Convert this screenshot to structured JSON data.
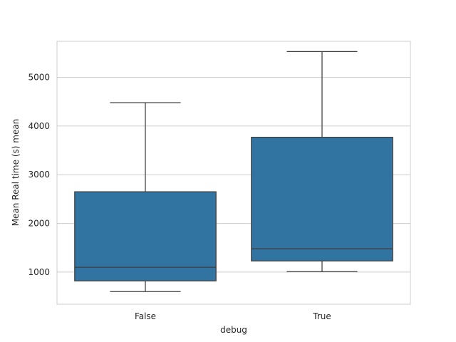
{
  "chart_data": {
    "type": "box",
    "xlabel": "debug",
    "ylabel": "Mean Real time (s) mean",
    "categories": [
      "False",
      "True"
    ],
    "boxes": [
      {
        "category": "False",
        "whisker_low": 600,
        "q1": 820,
        "median": 1100,
        "q3": 2650,
        "whisker_high": 4480
      },
      {
        "category": "True",
        "whisker_low": 1010,
        "q1": 1230,
        "median": 1480,
        "q3": 3770,
        "whisker_high": 5530
      }
    ],
    "yticks": [
      1000,
      2000,
      3000,
      4000,
      5000
    ],
    "ylim": [
      340,
      5740
    ],
    "grid": true,
    "colors": {
      "box_fill": "#3274a1",
      "line": "#3d3d3d",
      "grid": "#cccccc",
      "frame": "#cccccc"
    }
  }
}
